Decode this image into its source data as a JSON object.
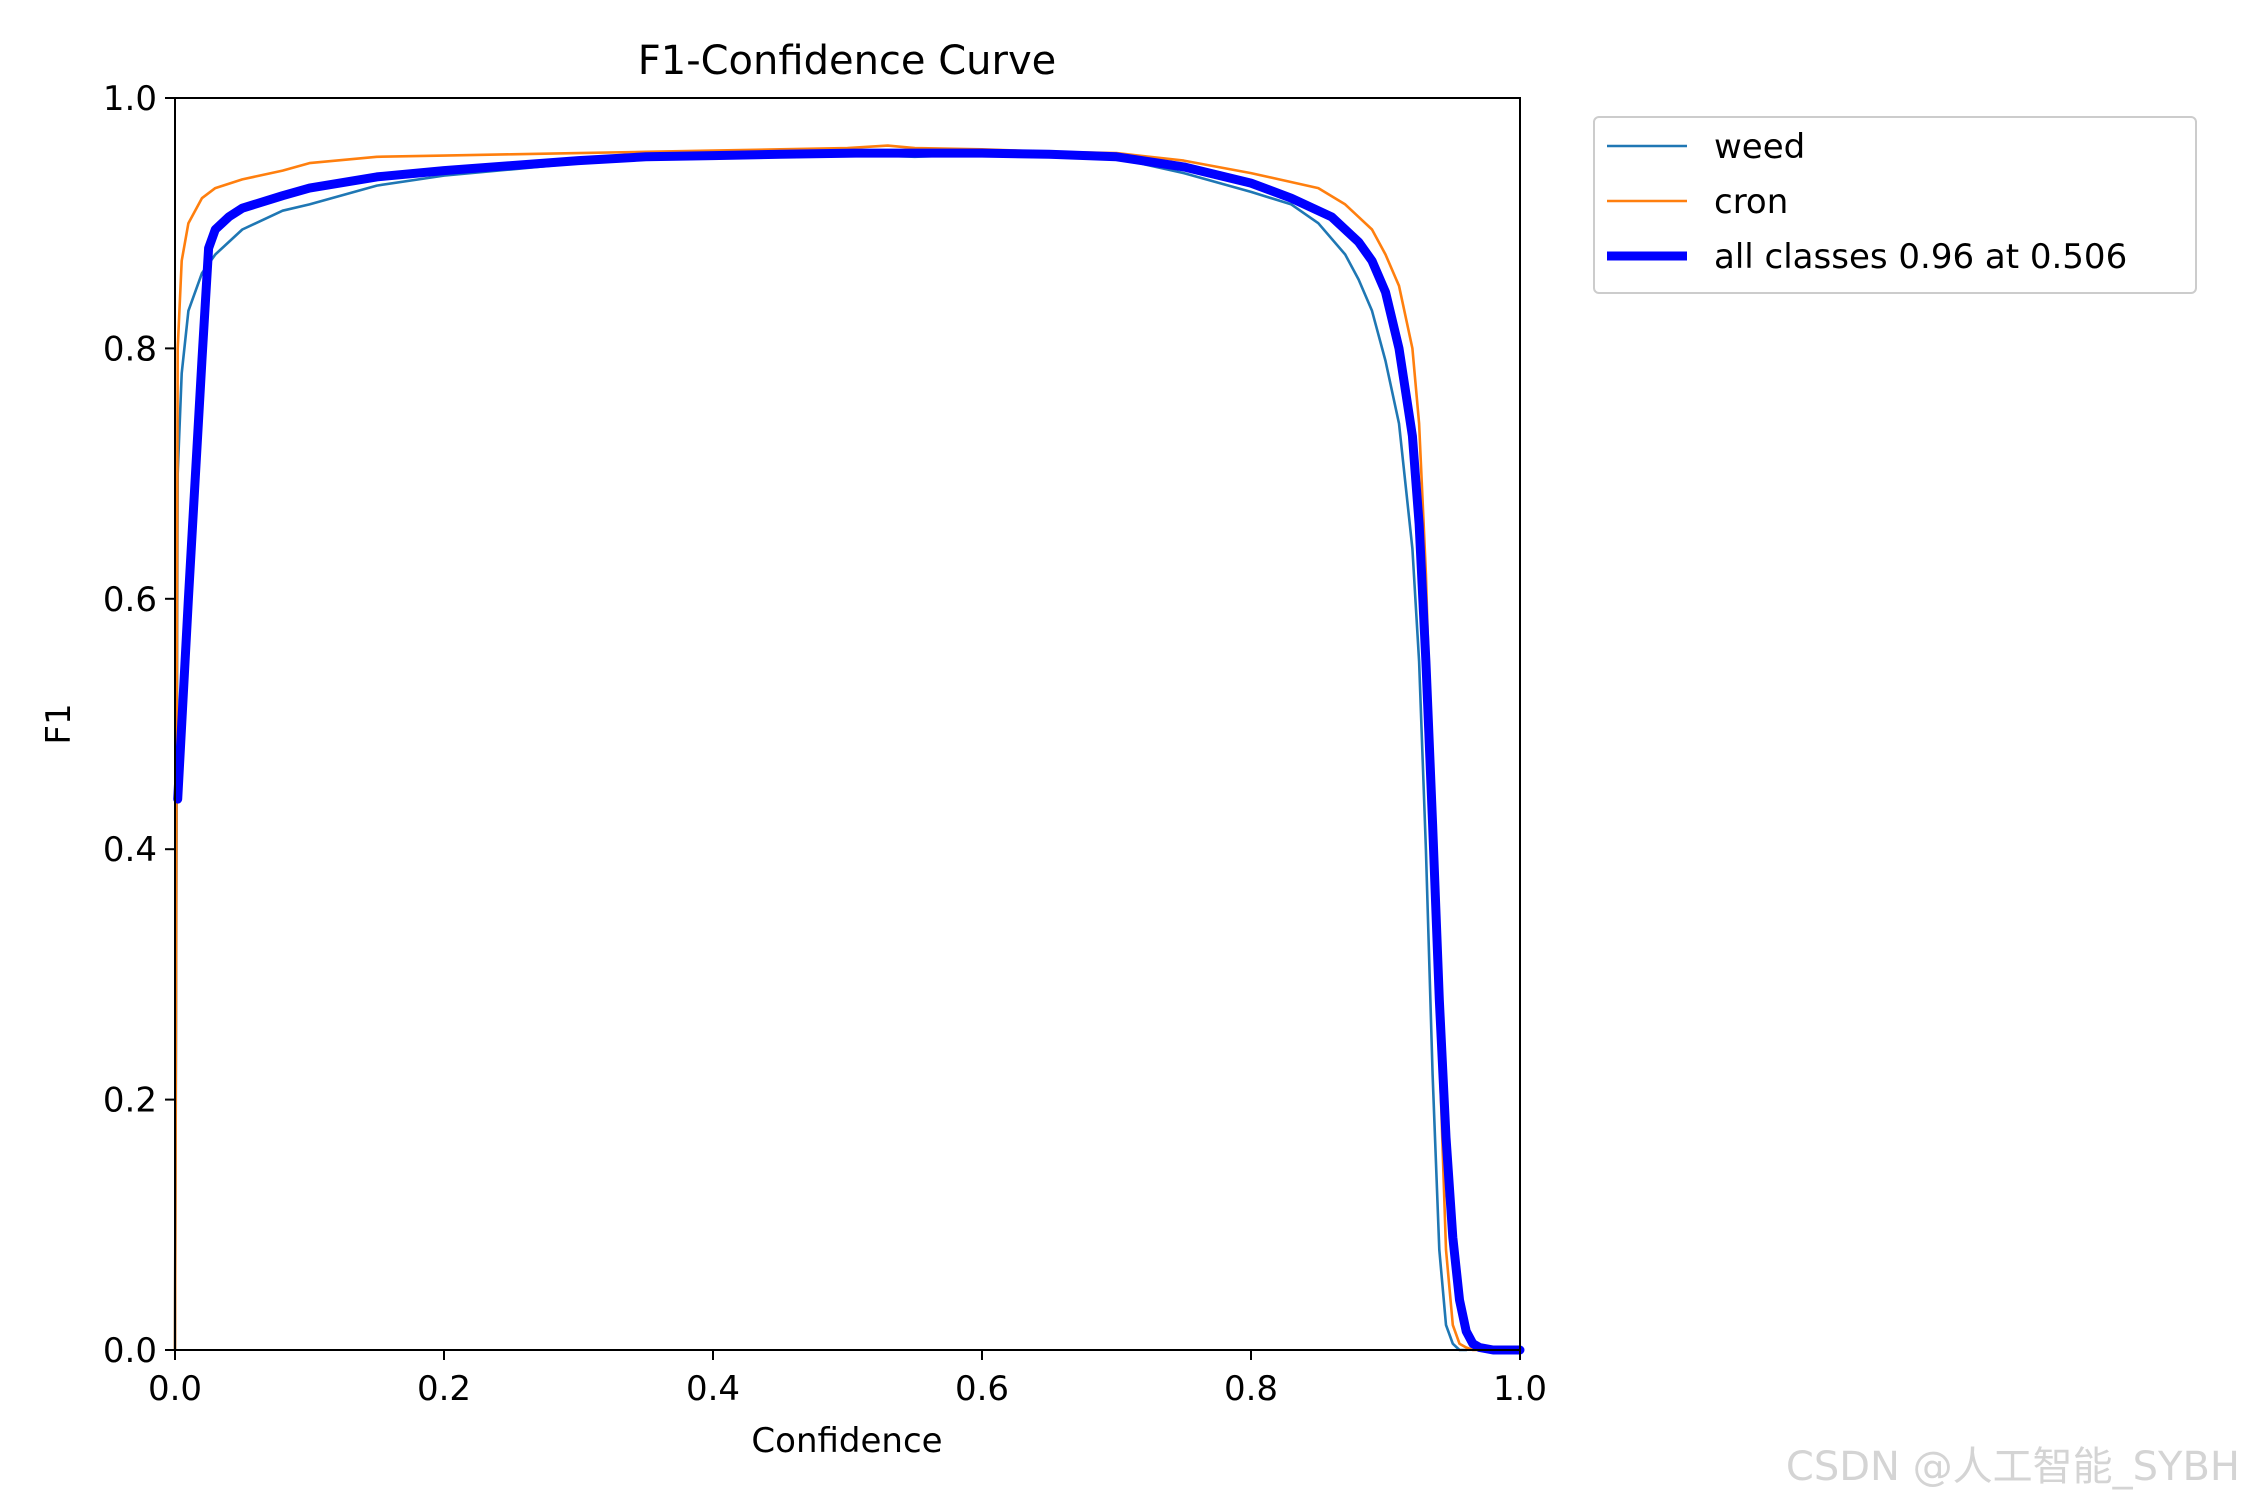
{
  "chart_data": {
    "type": "line",
    "title": "F1-Confidence Curve",
    "xlabel": "Confidence",
    "ylabel": "F1",
    "xlim": [
      0.0,
      1.0
    ],
    "ylim": [
      0.0,
      1.0
    ],
    "xticks": [
      "0.0",
      "0.2",
      "0.4",
      "0.6",
      "0.8",
      "1.0"
    ],
    "yticks": [
      "0.0",
      "0.2",
      "0.4",
      "0.6",
      "0.8",
      "1.0"
    ],
    "grid": false,
    "legend_position": "outside-top-right",
    "series": [
      {
        "name": "weed",
        "color": "#1f77b4",
        "x": [
          0.0,
          0.002,
          0.005,
          0.01,
          0.02,
          0.03,
          0.05,
          0.08,
          0.1,
          0.15,
          0.2,
          0.25,
          0.3,
          0.35,
          0.4,
          0.45,
          0.5,
          0.55,
          0.6,
          0.65,
          0.7,
          0.75,
          0.8,
          0.83,
          0.85,
          0.87,
          0.88,
          0.89,
          0.9,
          0.91,
          0.92,
          0.925,
          0.93,
          0.935,
          0.94,
          0.945,
          0.95,
          0.955,
          0.96
        ],
        "y": [
          0.0,
          0.7,
          0.78,
          0.83,
          0.86,
          0.875,
          0.895,
          0.91,
          0.915,
          0.93,
          0.938,
          0.943,
          0.948,
          0.953,
          0.955,
          0.955,
          0.955,
          0.953,
          0.955,
          0.955,
          0.952,
          0.94,
          0.925,
          0.915,
          0.9,
          0.875,
          0.855,
          0.83,
          0.79,
          0.74,
          0.64,
          0.55,
          0.4,
          0.22,
          0.08,
          0.02,
          0.005,
          0.0,
          0.0
        ]
      },
      {
        "name": "cron",
        "color": "#ff7f0e",
        "x": [
          0.0,
          0.002,
          0.005,
          0.01,
          0.02,
          0.03,
          0.05,
          0.08,
          0.1,
          0.15,
          0.2,
          0.25,
          0.3,
          0.35,
          0.4,
          0.45,
          0.5,
          0.53,
          0.55,
          0.6,
          0.65,
          0.7,
          0.75,
          0.8,
          0.85,
          0.87,
          0.88,
          0.89,
          0.9,
          0.91,
          0.92,
          0.925,
          0.93,
          0.935,
          0.94,
          0.945,
          0.95,
          0.955,
          0.96,
          0.965,
          0.97
        ],
        "y": [
          0.0,
          0.8,
          0.87,
          0.9,
          0.92,
          0.928,
          0.935,
          0.942,
          0.948,
          0.953,
          0.954,
          0.955,
          0.956,
          0.957,
          0.958,
          0.959,
          0.96,
          0.962,
          0.96,
          0.959,
          0.957,
          0.956,
          0.95,
          0.94,
          0.928,
          0.915,
          0.905,
          0.895,
          0.875,
          0.85,
          0.8,
          0.74,
          0.62,
          0.44,
          0.24,
          0.08,
          0.02,
          0.005,
          0.002,
          0.0,
          0.0
        ]
      },
      {
        "name": "all classes 0.96 at 0.506",
        "color": "#0000ff",
        "thick": true,
        "x": [
          0.002,
          0.01,
          0.02,
          0.025,
          0.03,
          0.04,
          0.05,
          0.08,
          0.1,
          0.15,
          0.2,
          0.25,
          0.3,
          0.35,
          0.4,
          0.45,
          0.506,
          0.55,
          0.6,
          0.65,
          0.7,
          0.75,
          0.8,
          0.83,
          0.86,
          0.88,
          0.89,
          0.9,
          0.91,
          0.92,
          0.925,
          0.93,
          0.935,
          0.94,
          0.945,
          0.95,
          0.955,
          0.96,
          0.965,
          0.97,
          0.98,
          1.0
        ],
        "y": [
          0.44,
          0.6,
          0.79,
          0.88,
          0.895,
          0.905,
          0.912,
          0.922,
          0.928,
          0.937,
          0.942,
          0.946,
          0.95,
          0.953,
          0.954,
          0.955,
          0.956,
          0.956,
          0.956,
          0.955,
          0.953,
          0.945,
          0.932,
          0.92,
          0.905,
          0.885,
          0.87,
          0.845,
          0.8,
          0.73,
          0.66,
          0.55,
          0.42,
          0.28,
          0.17,
          0.09,
          0.04,
          0.015,
          0.005,
          0.002,
          0.0,
          0.0
        ]
      }
    ]
  },
  "watermark": "CSDN @人工智能_SYBH"
}
